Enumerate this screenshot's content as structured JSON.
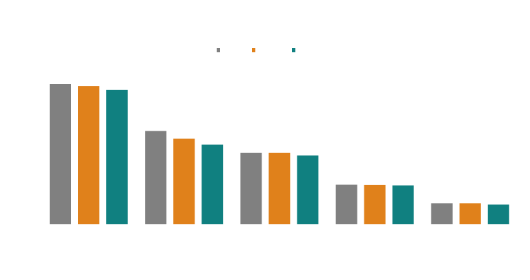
{
  "chart_data": {
    "type": "bar",
    "categories": [
      "",
      "",
      "",
      "",
      ""
    ],
    "series": [
      {
        "color": "#808080",
        "values": [
          100,
          66.5,
          51,
          28.2,
          15
        ]
      },
      {
        "color": "#e0811b",
        "values": [
          98.5,
          61,
          51,
          28,
          15
        ]
      },
      {
        "color": "#108080",
        "values": [
          95.7,
          56.7,
          49,
          27.7,
          14
        ]
      }
    ],
    "ylim": [
      0,
      100
    ],
    "grid": false,
    "legend": "top-center",
    "title": "",
    "xlabel": "",
    "ylabel": ""
  }
}
